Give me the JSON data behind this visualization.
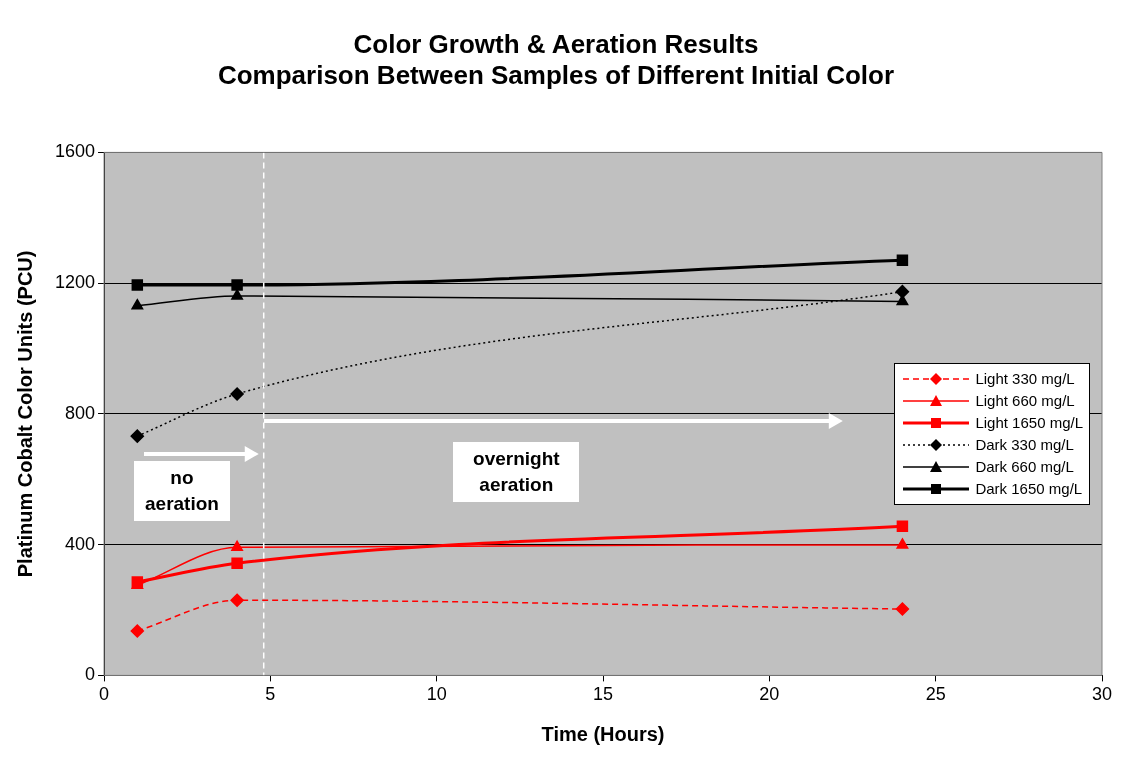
{
  "chart_data": {
    "type": "line",
    "title": "Color Growth & Aeration Results Comparison Between Samples of Different Initial Color",
    "xlabel": "Time (Hours)",
    "ylabel": "Platinum Cobalt Color Units (PCU)",
    "x": [
      1,
      4,
      24
    ],
    "series": [
      {
        "name": "Light 330 mg/L",
        "color": "#ff0000",
        "values": [
          136,
          230,
          203
        ],
        "marker": "diamond",
        "line_style": "dashed"
      },
      {
        "name": "Light 660 mg/L",
        "color": "#ff0000",
        "values": [
          276,
          392,
          399
        ],
        "marker": "triangle",
        "line_style": "solid"
      },
      {
        "name": "Light 1650 mg/L",
        "color": "#ff0000",
        "values": [
          286,
          343,
          456
        ],
        "marker": "square",
        "line_style": "solid"
      },
      {
        "name": "Dark 330 mg/L",
        "color": "#000000",
        "values": [
          732,
          861,
          1174
        ],
        "marker": "diamond",
        "line_style": "dotted"
      },
      {
        "name": "Dark 660 mg/L",
        "color": "#000000",
        "values": [
          1131,
          1161,
          1144
        ],
        "marker": "triangle",
        "line_style": "solid"
      },
      {
        "name": "Dark 1650 mg/L",
        "color": "#000000",
        "values": [
          1194,
          1194,
          1270
        ],
        "marker": "square",
        "line_style": "solid"
      }
    ],
    "xlim": [
      0,
      30
    ],
    "xticks": [
      0,
      5,
      10,
      15,
      20,
      25,
      30
    ],
    "ylim": [
      0,
      1600
    ],
    "yticks": [
      0,
      400,
      800,
      1200,
      1600
    ],
    "grid": "y",
    "legend": "right",
    "ref_lines": [
      {
        "axis": "x",
        "value": 4.8,
        "color": "#ffffff",
        "line_style": "dashed"
      }
    ],
    "annotations": [
      "no aeration",
      "overnight aeration"
    ]
  }
}
